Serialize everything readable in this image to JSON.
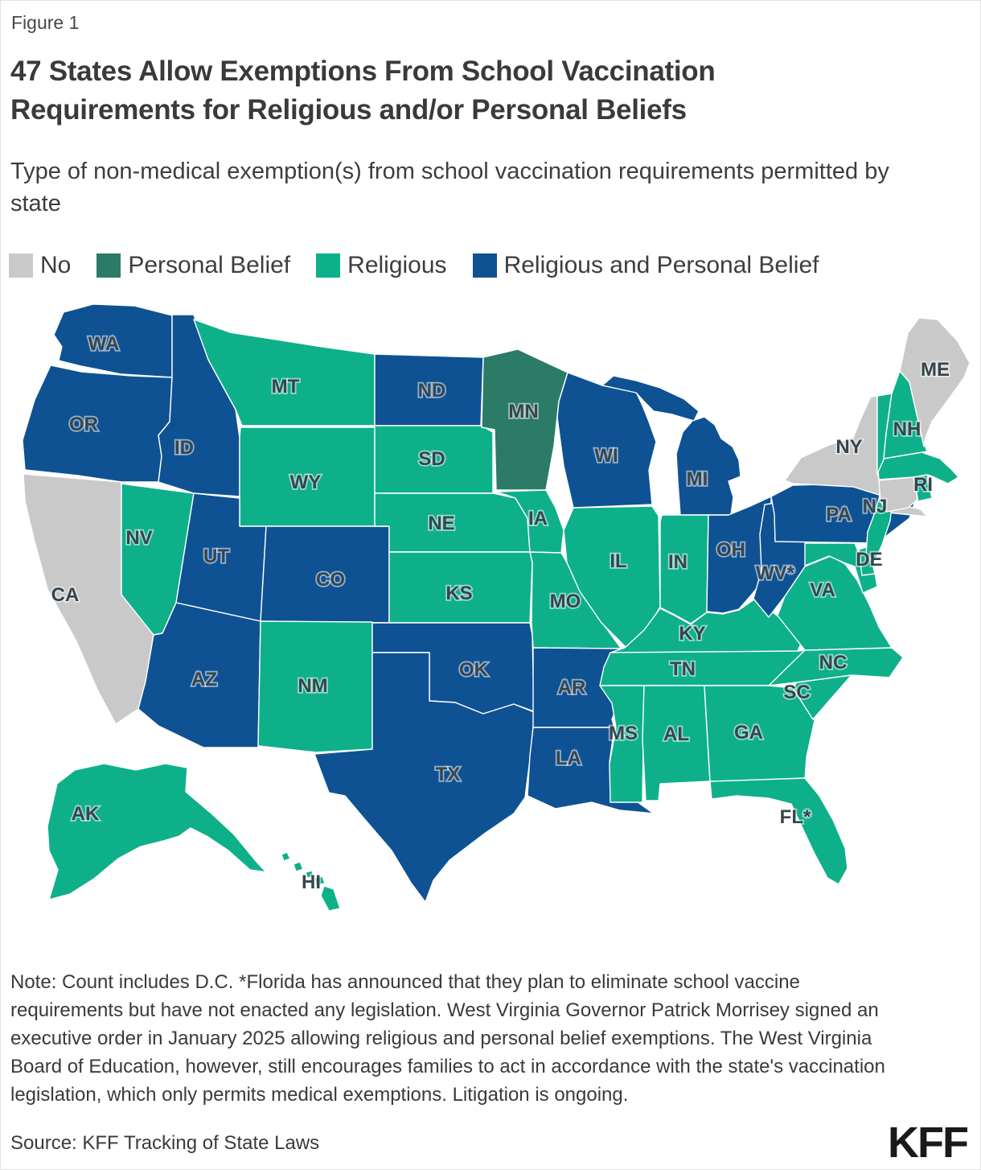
{
  "figure_label": "Figure 1",
  "title": "47 States Allow Exemptions From School Vaccination Requirements for Religious and/or Personal Beliefs",
  "subtitle": "Type of non-medical exemption(s) from school vaccination requirements permitted by state",
  "note": "Note: Count includes D.C. *Florida has announced that they plan to eliminate school vaccine requirements but have not enacted any legislation. West Virginia Governor Patrick Morrisey signed an executive order in January 2025 allowing religious and personal belief exemptions. The West Virginia Board of Education, however, still encourages families to act in accordance with the state's vaccination legislation, which only permits medical exemptions. Litigation is ongoing.",
  "source": "Source: KFF Tracking of State Laws",
  "logo": "KFF",
  "chart_data": {
    "type": "choropleth-map",
    "region": "United States",
    "title": "47 States Allow Exemptions From School Vaccination Requirements for Religious and/or Personal Beliefs",
    "legend_position": "top-left",
    "categories": [
      {
        "key": "no",
        "label": "No",
        "color": "#c9c9c9"
      },
      {
        "key": "personal",
        "label": "Personal Belief",
        "color": "#2b7b67"
      },
      {
        "key": "religious",
        "label": "Religious",
        "color": "#0eb08a"
      },
      {
        "key": "both",
        "label": "Religious and Personal Belief",
        "color": "#0e5293"
      }
    ],
    "states": [
      {
        "abbr": "WA",
        "label": "WA",
        "category": "both"
      },
      {
        "abbr": "OR",
        "label": "OR",
        "category": "both"
      },
      {
        "abbr": "CA",
        "label": "CA",
        "category": "no"
      },
      {
        "abbr": "ID",
        "label": "ID",
        "category": "both"
      },
      {
        "abbr": "NV",
        "label": "NV",
        "category": "religious"
      },
      {
        "abbr": "MT",
        "label": "MT",
        "category": "religious"
      },
      {
        "abbr": "WY",
        "label": "WY",
        "category": "religious"
      },
      {
        "abbr": "UT",
        "label": "UT",
        "category": "both"
      },
      {
        "abbr": "CO",
        "label": "CO",
        "category": "both"
      },
      {
        "abbr": "AZ",
        "label": "AZ",
        "category": "both"
      },
      {
        "abbr": "NM",
        "label": "NM",
        "category": "religious"
      },
      {
        "abbr": "ND",
        "label": "ND",
        "category": "both"
      },
      {
        "abbr": "SD",
        "label": "SD",
        "category": "religious"
      },
      {
        "abbr": "NE",
        "label": "NE",
        "category": "religious"
      },
      {
        "abbr": "KS",
        "label": "KS",
        "category": "religious"
      },
      {
        "abbr": "OK",
        "label": "OK",
        "category": "both"
      },
      {
        "abbr": "TX",
        "label": "TX",
        "category": "both"
      },
      {
        "abbr": "MN",
        "label": "MN",
        "category": "personal"
      },
      {
        "abbr": "IA",
        "label": "IA",
        "category": "religious"
      },
      {
        "abbr": "MO",
        "label": "MO",
        "category": "religious"
      },
      {
        "abbr": "AR",
        "label": "AR",
        "category": "both"
      },
      {
        "abbr": "LA",
        "label": "LA",
        "category": "both"
      },
      {
        "abbr": "WI",
        "label": "WI",
        "category": "both"
      },
      {
        "abbr": "IL",
        "label": "IL",
        "category": "religious"
      },
      {
        "abbr": "MI",
        "label": "MI",
        "category": "both"
      },
      {
        "abbr": "IN",
        "label": "IN",
        "category": "religious"
      },
      {
        "abbr": "OH",
        "label": "OH",
        "category": "both"
      },
      {
        "abbr": "KY",
        "label": "KY",
        "category": "religious"
      },
      {
        "abbr": "TN",
        "label": "TN",
        "category": "religious"
      },
      {
        "abbr": "MS",
        "label": "MS",
        "category": "religious"
      },
      {
        "abbr": "AL",
        "label": "AL",
        "category": "religious"
      },
      {
        "abbr": "GA",
        "label": "GA",
        "category": "religious"
      },
      {
        "abbr": "FL",
        "label": "FL*",
        "category": "religious"
      },
      {
        "abbr": "SC",
        "label": "SC",
        "category": "religious"
      },
      {
        "abbr": "NC",
        "label": "NC",
        "category": "religious"
      },
      {
        "abbr": "VA",
        "label": "VA",
        "category": "religious"
      },
      {
        "abbr": "WV",
        "label": "WV*",
        "category": "both"
      },
      {
        "abbr": "PA",
        "label": "PA",
        "category": "both"
      },
      {
        "abbr": "NY",
        "label": "NY",
        "category": "no"
      },
      {
        "abbr": "MD",
        "label": "",
        "category": "religious"
      },
      {
        "abbr": "DE",
        "label": "DE",
        "category": "religious"
      },
      {
        "abbr": "NJ",
        "label": "NJ",
        "category": "religious"
      },
      {
        "abbr": "CT",
        "label": "",
        "category": "no"
      },
      {
        "abbr": "RI",
        "label": "RI",
        "category": "religious"
      },
      {
        "abbr": "MA",
        "label": "",
        "category": "religious"
      },
      {
        "abbr": "VT",
        "label": "",
        "category": "religious"
      },
      {
        "abbr": "NH",
        "label": "NH",
        "category": "religious"
      },
      {
        "abbr": "ME",
        "label": "ME",
        "category": "no"
      },
      {
        "abbr": "AK",
        "label": "AK",
        "category": "religious"
      },
      {
        "abbr": "HI",
        "label": "HI",
        "category": "religious"
      }
    ]
  }
}
